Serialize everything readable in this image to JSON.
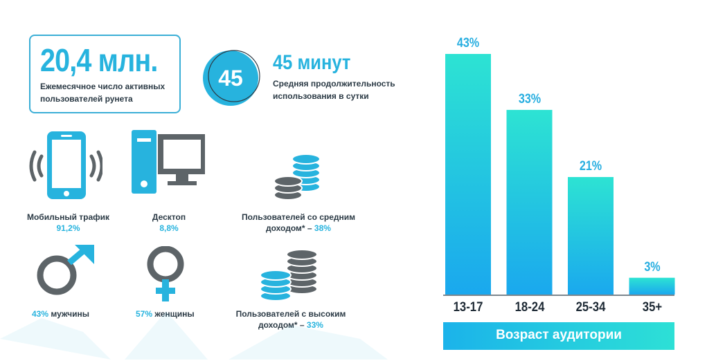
{
  "users_stat": {
    "value": "20,4 млн.",
    "description": "Ежемесячное число активных пользователей рунета"
  },
  "time_stat": {
    "circle_number": "45",
    "title": "45 минут",
    "description": "Средняя продолжительность использования в сутки"
  },
  "traffic": {
    "mobile_label": "Мобильный трафик",
    "mobile_value": "91,2%",
    "desktop_label": "Десктоп",
    "desktop_value": "8,8%"
  },
  "gender": {
    "male_pct": "43%",
    "male_label": "мужчины",
    "female_pct": "57%",
    "female_label": "женщины"
  },
  "income": {
    "middle_line1": "Пользователей со средним",
    "middle_line2": "доходом* –",
    "middle_pct": "38%",
    "high_line1": "Пользователей с высоким",
    "high_line2": "доходом* –",
    "high_pct": "33%"
  },
  "colors": {
    "accent": "#27b3de",
    "dark": "#2b3a45",
    "gray_icon": "#7a7f82",
    "bar_top": "#2de3d3",
    "bar_bottom": "#1aa8ee"
  },
  "chart_data": {
    "type": "bar",
    "categories": [
      "13-17",
      "18-24",
      "25-34",
      "35+"
    ],
    "values": [
      43,
      33,
      21,
      3
    ],
    "value_labels": [
      "43%",
      "33%",
      "21%",
      "3%"
    ],
    "xlabel": "Возраст аудитории",
    "ylim": [
      0,
      43
    ]
  }
}
